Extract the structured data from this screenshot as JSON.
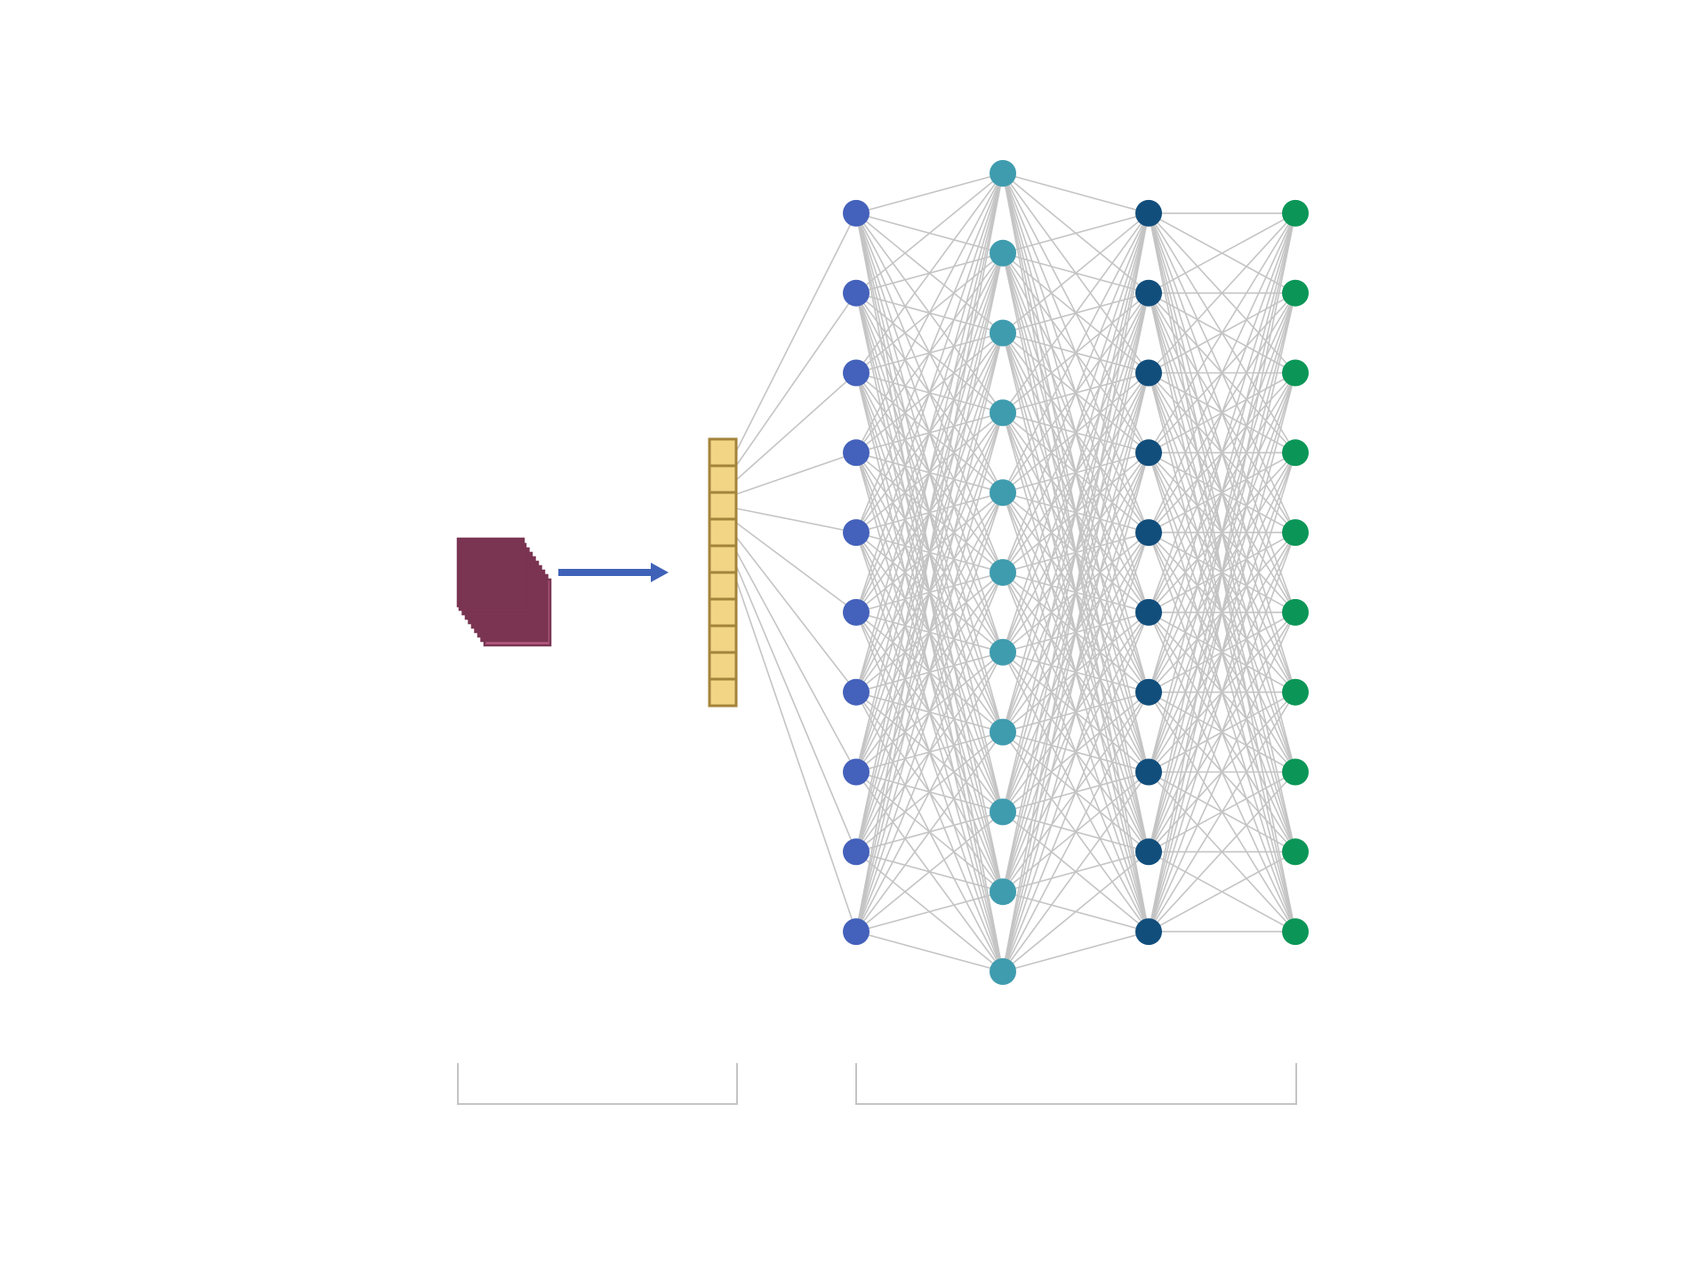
{
  "diagram": {
    "type": "neural-network",
    "feature_maps": {
      "stack_count": 9,
      "fill_color": "#b85a82",
      "side_color": "#7a3552",
      "stroke_color": "#7a3552"
    },
    "flatten_arrow": {
      "color": "#3f62b8"
    },
    "flatten_vector": {
      "cell_count": 10,
      "fill_color": "#f2d585",
      "stroke_color": "#a4843a"
    },
    "layers": [
      {
        "name": "layer-1",
        "node_count": 10,
        "color": "#4461bb"
      },
      {
        "name": "layer-2",
        "node_count": 11,
        "color": "#3f9caf"
      },
      {
        "name": "layer-3",
        "node_count": 10,
        "color": "#124e7c"
      },
      {
        "name": "layer-4",
        "node_count": 10,
        "color": "#0b9657"
      }
    ],
    "connection_color": "#c4c4c4",
    "bracket_color": "#c4c4c4",
    "brackets": [
      {
        "name": "feature-extraction-bracket",
        "spans": "feature-maps-to-vector"
      },
      {
        "name": "classification-bracket",
        "spans": "dense-layers"
      }
    ]
  }
}
